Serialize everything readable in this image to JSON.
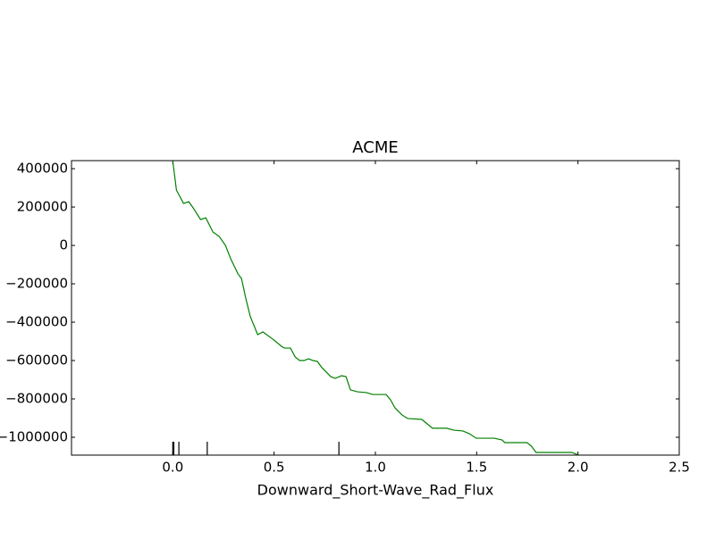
{
  "chart_data": {
    "type": "line",
    "title": "ACME",
    "x_label": "Downward_Short-Wave_Rad_Flux",
    "series": [
      {
        "color": "#008000",
        "x": [
          0,
          0.018,
          0.053,
          0.079,
          0.101,
          0.137,
          0.163,
          0.198,
          0.229,
          0.26,
          0.286,
          0.322,
          0.339,
          0.361,
          0.383,
          0.419,
          0.445,
          0.493,
          0.537,
          0.551,
          0.581,
          0.604,
          0.626,
          0.648,
          0.67,
          0.692,
          0.714,
          0.736,
          0.78,
          0.802,
          0.833,
          0.855,
          0.877,
          0.912,
          0.956,
          0.987,
          1.053,
          1.075,
          1.097,
          1.132,
          1.159,
          1.229,
          1.282,
          1.352,
          1.388,
          1.432,
          1.463,
          1.498,
          1.586,
          1.626,
          1.639,
          1.749,
          1.771,
          1.793,
          1.969,
          2.004
        ],
        "values": [
          440000,
          288000,
          219000,
          228000,
          195000,
          135000,
          144000,
          70000,
          47000,
          0,
          -70000,
          -149000,
          -172000,
          -279000,
          -372000,
          -465000,
          -451000,
          -488000,
          -526000,
          -535000,
          -535000,
          -581000,
          -600000,
          -600000,
          -591000,
          -600000,
          -605000,
          -637000,
          -684000,
          -693000,
          -679000,
          -684000,
          -753000,
          -763000,
          -767000,
          -777000,
          -777000,
          -805000,
          -847000,
          -884000,
          -902000,
          -907000,
          -953000,
          -953000,
          -963000,
          -967000,
          -981000,
          -1005000,
          -1005000,
          -1014000,
          -1028000,
          -1028000,
          -1047000,
          -1079000,
          -1079000,
          -1093000
        ]
      }
    ],
    "rug": [
      0,
      0.005,
      0.03,
      0.17,
      0.82
    ],
    "rug_color": "#000000",
    "xlim": [
      -0.5,
      2.5
    ],
    "xticks": [
      {
        "value": 0,
        "label": "0.0"
      },
      0.5,
      {
        "value": 1,
        "label": "1.0"
      },
      1.5,
      {
        "value": 2,
        "label": "2.0"
      },
      2.5
    ],
    "ylim": [
      -1093000,
      442000
    ],
    "yticks": [
      400000,
      200000,
      0,
      {
        "value": -200000,
        "label": "−200000"
      },
      {
        "value": -400000,
        "label": "−400000"
      },
      {
        "value": -600000,
        "label": "−600000"
      },
      {
        "value": -800000,
        "label": "−800000"
      },
      {
        "value": -1000000,
        "label": "−1000000"
      }
    ],
    "grid": false
  }
}
